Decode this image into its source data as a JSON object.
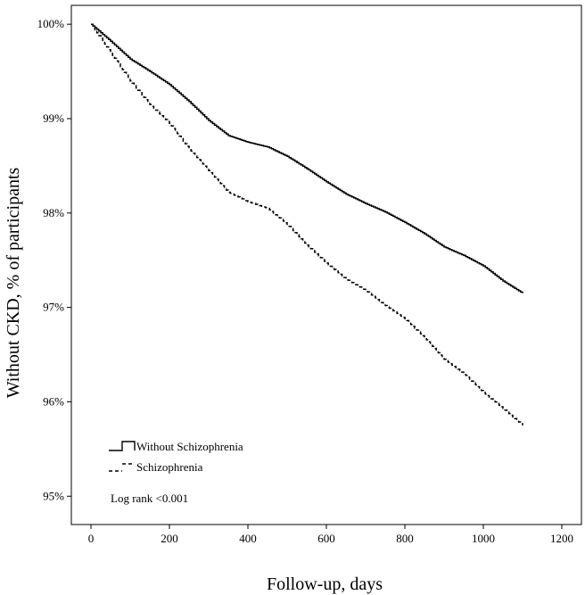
{
  "chart_data": {
    "type": "line",
    "title": "",
    "xlabel": "Follow-up, days",
    "ylabel": "Without CKD, % of participants",
    "xlim": [
      -50,
      1250
    ],
    "ylim": [
      94.7,
      100.2
    ],
    "xticks": [
      0,
      200,
      400,
      600,
      800,
      1000,
      1200
    ],
    "xtick_labels": [
      "0",
      "200",
      "400",
      "600",
      "800",
      "1000",
      "1200"
    ],
    "yticks": [
      95,
      96,
      97,
      98,
      99,
      100
    ],
    "ytick_labels": [
      "95%",
      "96%",
      "97%",
      "98%",
      "99%",
      "100%"
    ],
    "grid": false,
    "legend_position": "bottom-left",
    "series": [
      {
        "name": "Without Schizophrenia",
        "line_style": "solid",
        "color": "#000000",
        "x": [
          0,
          50,
          100,
          150,
          200,
          250,
          300,
          350,
          400,
          450,
          500,
          550,
          600,
          650,
          700,
          750,
          800,
          850,
          900,
          950,
          1000,
          1050,
          1100
        ],
        "y": [
          100.0,
          99.82,
          99.63,
          99.5,
          99.36,
          99.18,
          98.98,
          98.82,
          98.75,
          98.7,
          98.6,
          98.47,
          98.33,
          98.2,
          98.1,
          98.01,
          97.9,
          97.78,
          97.64,
          97.55,
          97.44,
          97.28,
          97.15
        ]
      },
      {
        "name": "Schizophrenia",
        "line_style": "dashed",
        "color": "#000000",
        "x": [
          0,
          50,
          100,
          150,
          200,
          250,
          300,
          350,
          400,
          450,
          500,
          550,
          600,
          650,
          700,
          750,
          800,
          850,
          900,
          950,
          1000,
          1050,
          1100
        ],
        "y": [
          100.0,
          99.7,
          99.4,
          99.15,
          98.95,
          98.68,
          98.45,
          98.22,
          98.12,
          98.05,
          97.88,
          97.66,
          97.47,
          97.3,
          97.18,
          97.02,
          96.88,
          96.68,
          96.45,
          96.3,
          96.1,
          95.93,
          95.75
        ]
      }
    ],
    "annotations": [
      {
        "text": "Log rank <0.001"
      }
    ]
  }
}
